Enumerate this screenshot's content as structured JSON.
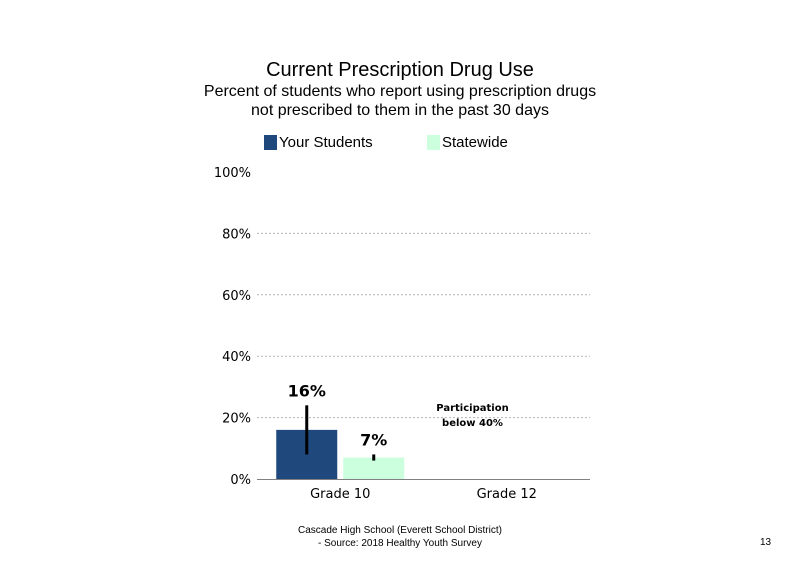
{
  "chart_data": {
    "type": "bar",
    "title": "Current Prescription Drug Use",
    "subtitle": "Percent of students who report using prescription drugs\nnot prescribed to them in the past 30 days",
    "categories": [
      "Grade 10",
      "Grade 12"
    ],
    "series": [
      {
        "name": "Your Students",
        "color": "#1F497D",
        "values": [
          16,
          null
        ],
        "data_labels": [
          "16%",
          ""
        ],
        "error_bars": [
          [
            8,
            24
          ],
          null
        ]
      },
      {
        "name": "Statewide",
        "color": "#CCFFDD",
        "values": [
          7,
          null
        ],
        "data_labels": [
          "7%",
          ""
        ],
        "error_bars": [
          [
            6,
            8
          ],
          null
        ]
      }
    ],
    "ylim": [
      0,
      100
    ],
    "yticks": [
      0,
      20,
      40,
      60,
      80,
      100
    ],
    "ytick_labels": [
      "0%",
      "20%",
      "40%",
      "60%",
      "80%",
      "100%"
    ],
    "grid": true,
    "legend_position": "top",
    "annotation": "Participation\nbelow 40%"
  },
  "footer": "Cascade High School (Everett School District)\n- Source: 2018 Healthy  Youth Survey",
  "page_number": "13"
}
